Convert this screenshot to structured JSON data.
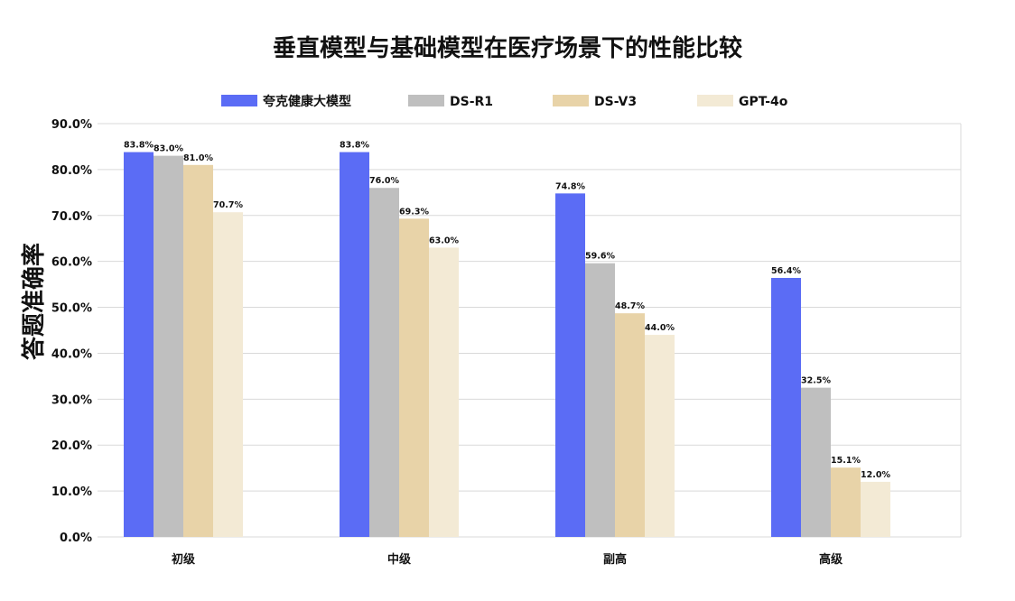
{
  "chart_data": {
    "type": "bar",
    "title": "垂直模型与基础模型在医疗场景下的性能比较",
    "ylabel": "答题准确率",
    "xlabel": "",
    "ylim": [
      0,
      90
    ],
    "yticks": [
      "0.0%",
      "10.0%",
      "20.0%",
      "30.0%",
      "40.0%",
      "50.0%",
      "60.0%",
      "70.0%",
      "80.0%",
      "90.0%"
    ],
    "categories": [
      "初级",
      "中级",
      "副高",
      "高级"
    ],
    "legend_position": "top",
    "grid": true,
    "series": [
      {
        "name": "夸克健康大模型",
        "color": "#5B6CF5",
        "values": [
          83.8,
          83.8,
          74.8,
          56.4
        ],
        "labels": [
          "83.8%",
          "83.8%",
          "74.8%",
          "56.4%"
        ]
      },
      {
        "name": "DS-R1",
        "color": "#BFBFBF",
        "values": [
          83.0,
          76.0,
          59.6,
          32.5
        ],
        "labels": [
          "83.0%",
          "76.0%",
          "59.6%",
          "32.5%"
        ]
      },
      {
        "name": "DS-V3",
        "color": "#E8D3A8",
        "values": [
          81.0,
          69.3,
          48.7,
          15.1
        ],
        "labels": [
          "81.0%",
          "69.3%",
          "48.7%",
          "15.1%"
        ]
      },
      {
        "name": "GPT-4o",
        "color": "#F3EAD5",
        "values": [
          70.7,
          63.0,
          44.0,
          12.0
        ],
        "labels": [
          "70.7%",
          "63.0%",
          "44.0%",
          "12.0%"
        ]
      }
    ]
  }
}
